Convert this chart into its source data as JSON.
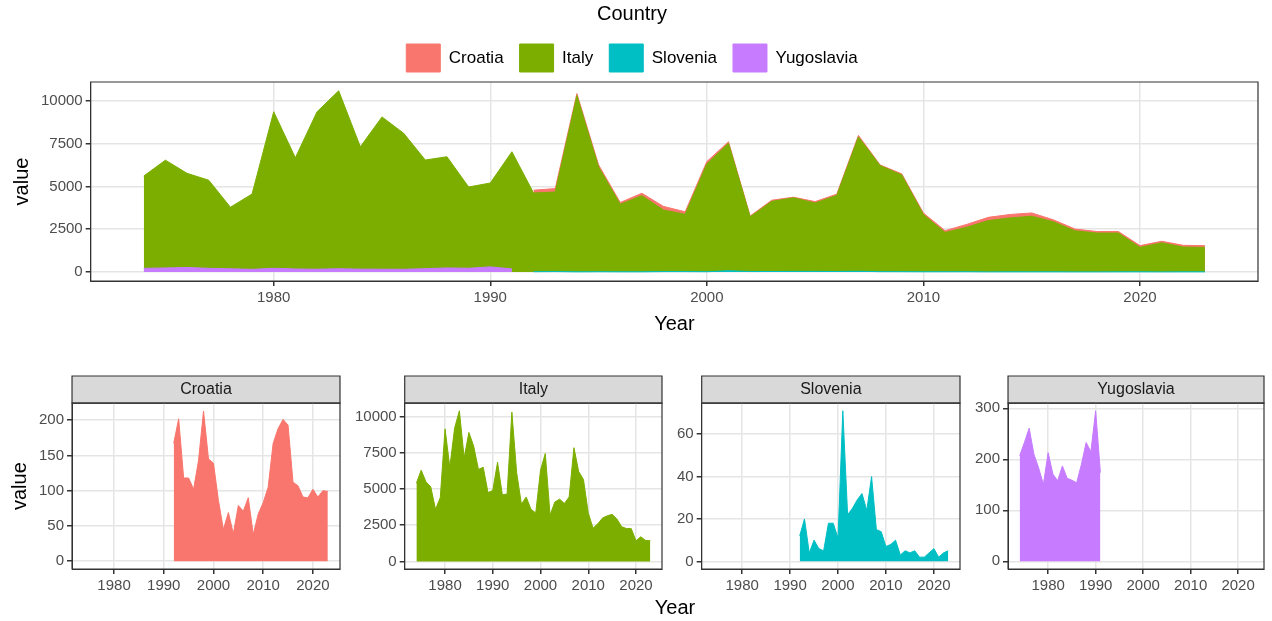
{
  "chart_data": [
    {
      "type": "area",
      "stacked": true,
      "legend": "top",
      "legend_title": "Country",
      "xlabel": "Year",
      "ylabel": "value",
      "grid": true,
      "x": [
        1974,
        1975,
        1976,
        1977,
        1978,
        1979,
        1980,
        1981,
        1982,
        1983,
        1984,
        1985,
        1986,
        1987,
        1988,
        1989,
        1990,
        1991,
        1992,
        1993,
        1994,
        1995,
        1996,
        1997,
        1998,
        1999,
        2000,
        2001,
        2002,
        2003,
        2004,
        2005,
        2006,
        2007,
        2008,
        2009,
        2010,
        2011,
        2012,
        2013,
        2014,
        2015,
        2016,
        2017,
        2018,
        2019,
        2020,
        2021,
        2022,
        2023
      ],
      "xlim": [
        1971.55,
        2025.45
      ],
      "xticks": [
        1980,
        1990,
        2000,
        2010,
        2020
      ],
      "ylim": [
        -530,
        11100
      ],
      "yticks": [
        0,
        2500,
        5000,
        7500,
        10000
      ],
      "series": [
        {
          "name": "Yugoslavia",
          "color": "#c77cff",
          "values": [
            207,
            233,
            261,
            210,
            183,
            151,
            213,
            171,
            158,
            187,
            163,
            159,
            154,
            190,
            233,
            215,
            295,
            174,
            null,
            null,
            null,
            null,
            null,
            null,
            null,
            null,
            null,
            null,
            null,
            null,
            null,
            null,
            null,
            null,
            null,
            null,
            null,
            null,
            null,
            null,
            null,
            null,
            null,
            null,
            null,
            null,
            null,
            null,
            null,
            null
          ]
        },
        {
          "name": "Slovenia",
          "color": "#00bfc4",
          "values": [
            null,
            null,
            null,
            null,
            null,
            null,
            null,
            null,
            null,
            null,
            null,
            null,
            null,
            null,
            null,
            null,
            null,
            null,
            12,
            20,
            4,
            10,
            6,
            5,
            18,
            18,
            11,
            71,
            22,
            25,
            29,
            32,
            24,
            40,
            15,
            14,
            7,
            8,
            10,
            3,
            5,
            4,
            5,
            2,
            2,
            4,
            6,
            2,
            4,
            5
          ]
        },
        {
          "name": "Italy",
          "color": "#7cae00",
          "values": [
            5400,
            6300,
            5500,
            5150,
            3600,
            4400,
            9150,
            6500,
            9200,
            10400,
            7150,
            8900,
            7950,
            6350,
            6500,
            4750,
            4900,
            6850,
            4600,
            4650,
            10300,
            6130,
            3950,
            4450,
            3600,
            3350,
            6300,
            7450,
            3200,
            4100,
            4300,
            4000,
            4450,
            7850,
            6200,
            5650,
            3350,
            2300,
            2600,
            3000,
            3150,
            3250,
            2930,
            2400,
            2270,
            2270,
            1430,
            1700,
            1450,
            1430
          ]
        },
        {
          "name": "Croatia",
          "color": "#f8766d",
          "values": [
            null,
            null,
            null,
            null,
            null,
            null,
            null,
            null,
            null,
            null,
            null,
            null,
            null,
            null,
            null,
            null,
            null,
            null,
            167,
            202,
            118,
            118,
            102,
            143,
            213,
            145,
            139,
            86,
            45,
            69,
            39,
            79,
            71,
            90,
            38,
            67,
            83,
            105,
            167,
            188,
            201,
            193,
            112,
            107,
            91,
            90,
            102,
            91,
            100,
            99
          ]
        }
      ]
    },
    {
      "type": "area",
      "title": "Croatia",
      "ylabel": "value",
      "grid": true,
      "x": [
        1992,
        1993,
        1994,
        1995,
        1996,
        1997,
        1998,
        1999,
        2000,
        2001,
        2002,
        2003,
        2004,
        2005,
        2006,
        2007,
        2008,
        2009,
        2010,
        2011,
        2012,
        2013,
        2014,
        2015,
        2016,
        2017,
        2018,
        2019,
        2020,
        2021,
        2022,
        2023
      ],
      "xlim": [
        1971.55,
        2025.45
      ],
      "xticks": [
        1980,
        1990,
        2000,
        2010,
        2020
      ],
      "ylim": [
        -11,
        224
      ],
      "yticks": [
        0,
        50,
        100,
        150,
        200
      ],
      "series": [
        {
          "color": "#f8766d",
          "values": [
            167,
            202,
            118,
            118,
            102,
            143,
            213,
            145,
            139,
            86,
            45,
            69,
            39,
            79,
            71,
            90,
            38,
            67,
            83,
            105,
            167,
            188,
            201,
            193,
            112,
            107,
            91,
            90,
            102,
            91,
            100,
            99
          ]
        }
      ]
    },
    {
      "type": "area",
      "title": "Italy",
      "xlabel": "Year",
      "grid": true,
      "x": [
        1974,
        1975,
        1976,
        1977,
        1978,
        1979,
        1980,
        1981,
        1982,
        1983,
        1984,
        1985,
        1986,
        1987,
        1988,
        1989,
        1990,
        1991,
        1992,
        1993,
        1994,
        1995,
        1996,
        1997,
        1998,
        1999,
        2000,
        2001,
        2002,
        2003,
        2004,
        2005,
        2006,
        2007,
        2008,
        2009,
        2010,
        2011,
        2012,
        2013,
        2014,
        2015,
        2016,
        2017,
        2018,
        2019,
        2020,
        2021,
        2022,
        2023
      ],
      "xlim": [
        1971.55,
        2025.45
      ],
      "xticks": [
        1980,
        1990,
        2000,
        2010,
        2020
      ],
      "ylim": [
        -520,
        10920
      ],
      "yticks": [
        0,
        2500,
        5000,
        7500,
        10000
      ],
      "series": [
        {
          "color": "#7cae00",
          "values": [
            5400,
            6300,
            5500,
            5150,
            3600,
            4400,
            9150,
            6500,
            9200,
            10400,
            7150,
            8900,
            7950,
            6350,
            6500,
            4750,
            4900,
            6850,
            4600,
            4650,
            10300,
            6130,
            3950,
            4450,
            3600,
            3350,
            6300,
            7450,
            3200,
            4100,
            4300,
            4000,
            4450,
            7850,
            6200,
            5650,
            3350,
            2300,
            2600,
            3000,
            3150,
            3250,
            2930,
            2400,
            2270,
            2270,
            1430,
            1700,
            1450,
            1430
          ]
        }
      ]
    },
    {
      "type": "area",
      "title": "Slovenia",
      "grid": true,
      "x": [
        1992,
        1993,
        1994,
        1995,
        1996,
        1997,
        1998,
        1999,
        2000,
        2001,
        2002,
        2003,
        2004,
        2005,
        2006,
        2007,
        2008,
        2009,
        2010,
        2011,
        2012,
        2013,
        2014,
        2015,
        2016,
        2017,
        2018,
        2019,
        2020,
        2021,
        2022,
        2023
      ],
      "xlim": [
        1971.55,
        2025.45
      ],
      "xticks": [
        1980,
        1990,
        2000,
        2010,
        2020
      ],
      "ylim": [
        -3.6,
        74.6
      ],
      "yticks": [
        0,
        20,
        40,
        60
      ],
      "series": [
        {
          "color": "#00bfc4",
          "values": [
            12,
            20,
            4,
            10,
            6,
            5,
            18,
            18,
            11,
            71,
            22,
            25,
            29,
            32,
            24,
            40,
            15,
            14,
            7,
            8,
            10,
            3,
            5,
            4,
            5,
            2,
            2,
            4,
            6,
            2,
            4,
            5
          ]
        }
      ]
    },
    {
      "type": "area",
      "title": "Yugoslavia",
      "grid": true,
      "x": [
        1974,
        1975,
        1976,
        1977,
        1978,
        1979,
        1980,
        1981,
        1982,
        1983,
        1984,
        1985,
        1986,
        1987,
        1988,
        1989,
        1990,
        1991
      ],
      "xlim": [
        1971.55,
        2025.45
      ],
      "xticks": [
        1980,
        1990,
        2000,
        2010,
        2020
      ],
      "ylim": [
        -15,
        310
      ],
      "yticks": [
        0,
        100,
        200,
        300
      ],
      "series": [
        {
          "color": "#c77cff",
          "values": [
            207,
            233,
            261,
            210,
            183,
            151,
            213,
            171,
            158,
            187,
            163,
            159,
            154,
            190,
            233,
            215,
            295,
            174
          ]
        }
      ]
    }
  ]
}
